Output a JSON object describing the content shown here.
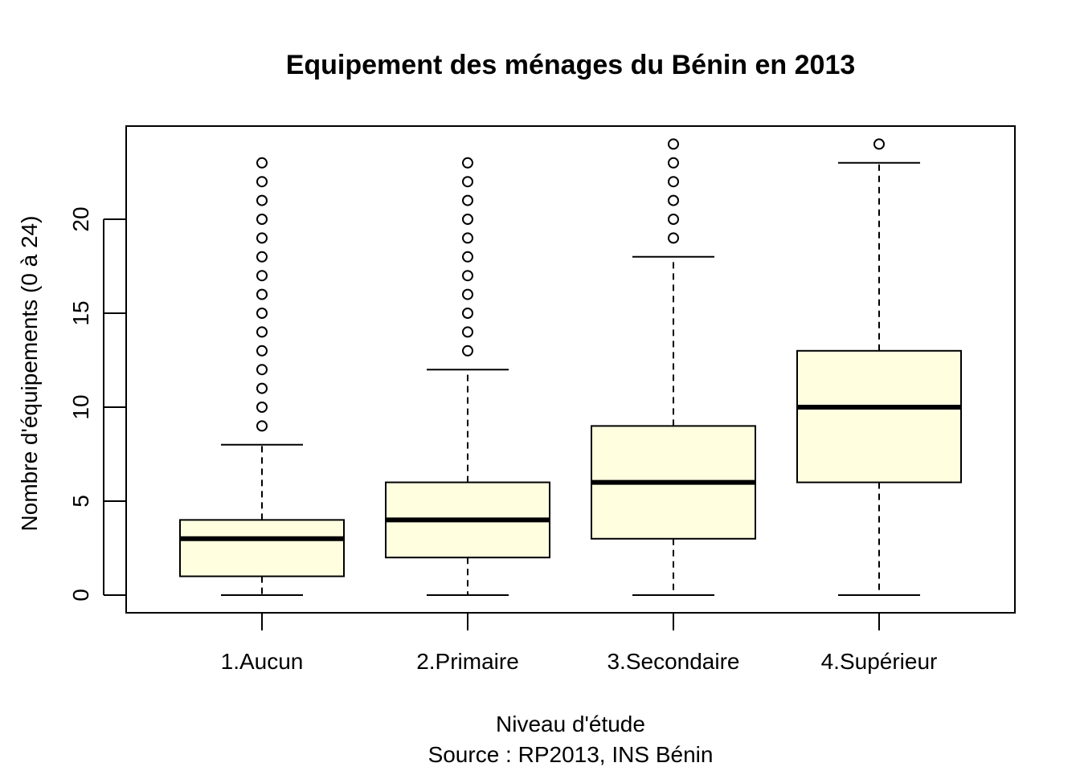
{
  "chart_data": {
    "type": "boxplot",
    "title": "Equipement des ménages du Bénin en 2013",
    "xlabel": "Niveau d'étude",
    "caption": "Source : RP2013, INS Bénin",
    "ylabel": "Nombre d'équipements (0 à 24)",
    "ylim": [
      -1,
      24
    ],
    "yticks": [
      0,
      5,
      10,
      15,
      20
    ],
    "box_fill": "#FFFFE0",
    "categories": [
      "1.Aucun",
      "2.Primaire",
      "3.Secondaire",
      "4.Supérieur"
    ],
    "boxes": [
      {
        "min": 0,
        "q1": 1,
        "median": 3,
        "q3": 4,
        "max": 8,
        "outliers": [
          9,
          10,
          11,
          12,
          13,
          14,
          15,
          16,
          17,
          18,
          19,
          20,
          21,
          22,
          23
        ]
      },
      {
        "min": 0,
        "q1": 2,
        "median": 4,
        "q3": 6,
        "max": 12,
        "outliers": [
          13,
          14,
          15,
          16,
          17,
          18,
          19,
          20,
          21,
          22,
          23
        ]
      },
      {
        "min": 0,
        "q1": 3,
        "median": 6,
        "q3": 9,
        "max": 18,
        "outliers": [
          19,
          20,
          21,
          22,
          23,
          24
        ]
      },
      {
        "min": 0,
        "q1": 6,
        "median": 10,
        "q3": 13,
        "max": 23,
        "outliers": [
          24
        ]
      }
    ]
  }
}
